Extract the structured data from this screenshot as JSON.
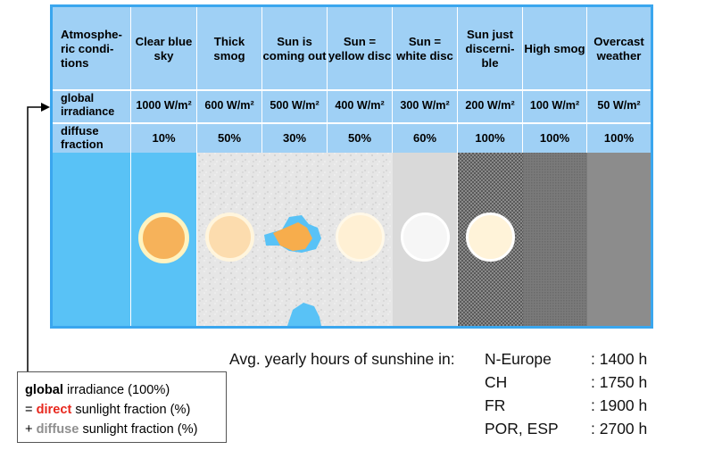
{
  "table": {
    "row_labels": {
      "conditions": "Atmosphe- ric condi- tions",
      "irradiance": "global irradiance",
      "diffuse": "diffuse fraction"
    },
    "columns": [
      {
        "condition": "Clear blue sky",
        "irradiance": "1000 W/m²",
        "diffuse": "10%"
      },
      {
        "condition": "Thick smog",
        "irradiance": "600 W/m²",
        "diffuse": "50%"
      },
      {
        "condition": "Sun is coming out",
        "irradiance": "500 W/m²",
        "diffuse": "30%"
      },
      {
        "condition": "Sun = yellow disc",
        "irradiance": "400 W/m²",
        "diffuse": "50%"
      },
      {
        "condition": "Sun = white disc",
        "irradiance": "300 W/m²",
        "diffuse": "60%"
      },
      {
        "condition": "Sun just discerni- ble",
        "irradiance": "200 W/m²",
        "diffuse": "100%"
      },
      {
        "condition": "High smog",
        "irradiance": "100 W/m²",
        "diffuse": "100%"
      },
      {
        "condition": "Overcast weather",
        "irradiance": "50 W/m²",
        "diffuse": "100%"
      }
    ]
  },
  "sunshine": {
    "heading": "Avg. yearly hours of sunshine in:",
    "rows": [
      {
        "region": "N-Europe",
        "hours": ": 1400 h"
      },
      {
        "region": "CH",
        "hours": ": 1750 h"
      },
      {
        "region": "FR",
        "hours": ": 1900 h"
      },
      {
        "region": "POR, ESP",
        "hours": ": 2700 h"
      }
    ]
  },
  "legend": {
    "line1_bold": "global",
    "line1_rest": " irradiance (100%)",
    "line2_pre": "= ",
    "line2_bold": "direct",
    "line2_rest": " sunlight fraction (%)",
    "line3_pre": "+ ",
    "line3_bold": "diffuse",
    "line3_rest": " sunlight fraction (%)"
  },
  "colors": {
    "panel_bg": "#9fd0f5",
    "panel_border": "#3aa6ee",
    "clear_sky": "#59c2f6",
    "direct_red": "#e8281e",
    "diffuse_gray": "#8f8f8f"
  }
}
